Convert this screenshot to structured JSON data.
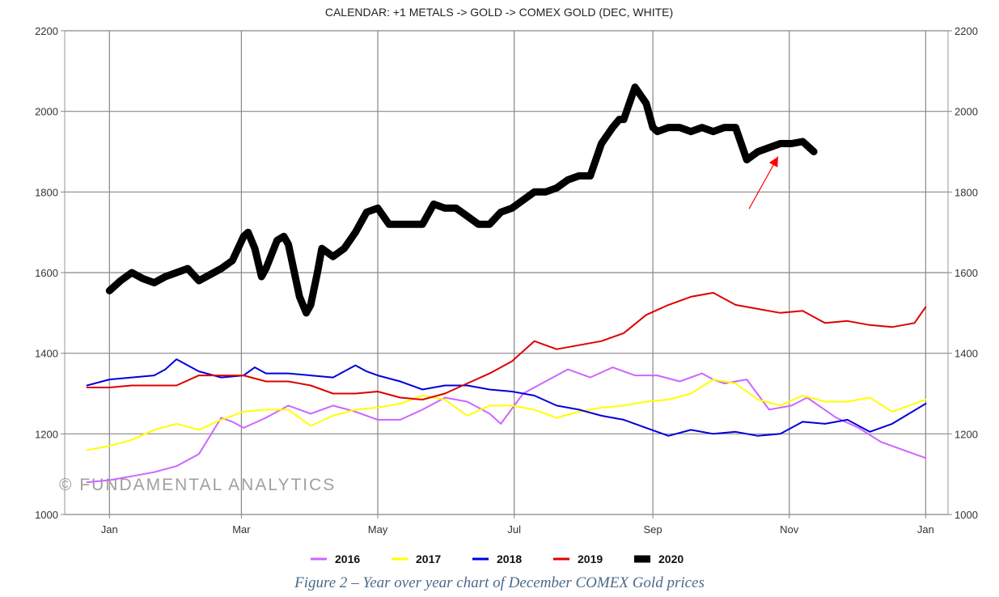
{
  "chart_data": {
    "type": "line",
    "title": "CALENDAR: +1 METALS -> GOLD -> COMEX GOLD (DEC, WHITE)",
    "xlabel": "",
    "ylabel": "",
    "ylim": [
      1000,
      2200
    ],
    "y_ticks": [
      "1000",
      "1200",
      "1400",
      "1600",
      "1800",
      "2000",
      "2200"
    ],
    "y_ticks_right": [
      "1000",
      "1200",
      "1400",
      "1600",
      "1800",
      "2000",
      "2200"
    ],
    "x_ticks": [
      "Jan",
      "Mar",
      "May",
      "Jul",
      "Sep",
      "Nov",
      "Jan"
    ],
    "x_units": "day of year (0 = Jan 1, 365 = next Jan 1)",
    "xlim": [
      -20,
      375
    ],
    "grid": true,
    "legend_position": "bottom",
    "watermark": "© FUNDAMENTAL ANALYTICS",
    "series": [
      {
        "name": "2016",
        "color": "#cc66ff",
        "width": 2,
        "x": [
          -10,
          0,
          10,
          20,
          30,
          40,
          50,
          55,
          60,
          70,
          80,
          90,
          100,
          110,
          120,
          130,
          140,
          150,
          160,
          170,
          175,
          185,
          195,
          205,
          215,
          225,
          235,
          245,
          255,
          265,
          270,
          275,
          285,
          295,
          305,
          312,
          325,
          335,
          345,
          355,
          365
        ],
        "y": [
          1080,
          1085,
          1095,
          1105,
          1120,
          1150,
          1240,
          1230,
          1215,
          1240,
          1270,
          1250,
          1270,
          1255,
          1235,
          1235,
          1260,
          1290,
          1280,
          1250,
          1225,
          1300,
          1330,
          1360,
          1340,
          1365,
          1345,
          1345,
          1330,
          1350,
          1335,
          1325,
          1335,
          1260,
          1270,
          1290,
          1240,
          1215,
          1180,
          1160,
          1140
        ]
      },
      {
        "name": "2017",
        "color": "#ffff00",
        "width": 2,
        "x": [
          -10,
          0,
          10,
          20,
          30,
          40,
          50,
          60,
          70,
          80,
          90,
          100,
          110,
          120,
          130,
          140,
          150,
          160,
          170,
          180,
          190,
          200,
          210,
          220,
          230,
          240,
          250,
          260,
          270,
          280,
          290,
          300,
          310,
          320,
          330,
          340,
          350,
          365
        ],
        "y": [
          1160,
          1170,
          1185,
          1210,
          1225,
          1210,
          1235,
          1255,
          1260,
          1260,
          1220,
          1245,
          1260,
          1265,
          1275,
          1295,
          1285,
          1245,
          1270,
          1270,
          1260,
          1240,
          1255,
          1265,
          1270,
          1280,
          1285,
          1300,
          1335,
          1325,
          1285,
          1270,
          1295,
          1280,
          1280,
          1290,
          1255,
          1285
        ]
      },
      {
        "name": "2018",
        "color": "#0000dd",
        "width": 2,
        "x": [
          -10,
          0,
          10,
          20,
          25,
          30,
          40,
          50,
          60,
          65,
          70,
          80,
          90,
          100,
          110,
          115,
          120,
          130,
          140,
          150,
          160,
          170,
          180,
          190,
          200,
          210,
          220,
          230,
          240,
          250,
          260,
          270,
          280,
          290,
          300,
          310,
          320,
          330,
          340,
          350,
          365
        ],
        "y": [
          1320,
          1335,
          1340,
          1345,
          1360,
          1385,
          1355,
          1340,
          1345,
          1365,
          1350,
          1350,
          1345,
          1340,
          1370,
          1355,
          1345,
          1330,
          1310,
          1320,
          1320,
          1310,
          1305,
          1295,
          1270,
          1260,
          1245,
          1235,
          1215,
          1195,
          1210,
          1200,
          1205,
          1195,
          1200,
          1230,
          1225,
          1235,
          1205,
          1225,
          1275
        ]
      },
      {
        "name": "2019",
        "color": "#dd0000",
        "width": 2,
        "x": [
          -10,
          0,
          10,
          20,
          30,
          40,
          50,
          60,
          70,
          80,
          90,
          100,
          110,
          120,
          130,
          140,
          150,
          160,
          170,
          180,
          190,
          200,
          210,
          220,
          230,
          240,
          250,
          260,
          270,
          280,
          290,
          300,
          310,
          320,
          330,
          340,
          350,
          360,
          365
        ],
        "y": [
          1315,
          1315,
          1320,
          1320,
          1320,
          1345,
          1345,
          1345,
          1330,
          1330,
          1320,
          1300,
          1300,
          1305,
          1290,
          1285,
          1300,
          1325,
          1350,
          1380,
          1430,
          1410,
          1420,
          1430,
          1450,
          1495,
          1520,
          1540,
          1550,
          1520,
          1510,
          1500,
          1505,
          1475,
          1480,
          1470,
          1465,
          1475,
          1515
        ]
      },
      {
        "name": "2020",
        "color": "#000000",
        "width": 9,
        "x": [
          0,
          5,
          10,
          15,
          20,
          25,
          30,
          35,
          40,
          45,
          50,
          55,
          60,
          62,
          65,
          68,
          70,
          75,
          78,
          80,
          85,
          88,
          90,
          93,
          95,
          100,
          105,
          110,
          115,
          120,
          125,
          130,
          135,
          140,
          145,
          150,
          155,
          160,
          165,
          170,
          175,
          180,
          185,
          190,
          195,
          200,
          205,
          210,
          215,
          220,
          225,
          228,
          230,
          235,
          240,
          243,
          245,
          250,
          255,
          260,
          265,
          270,
          275,
          280,
          285,
          290,
          295,
          300,
          305,
          310,
          315
        ],
        "y": [
          1555,
          1580,
          1600,
          1585,
          1575,
          1590,
          1600,
          1610,
          1580,
          1595,
          1610,
          1630,
          1690,
          1700,
          1660,
          1590,
          1610,
          1680,
          1690,
          1670,
          1540,
          1500,
          1520,
          1600,
          1660,
          1640,
          1660,
          1700,
          1750,
          1760,
          1720,
          1720,
          1720,
          1720,
          1770,
          1760,
          1760,
          1740,
          1720,
          1720,
          1750,
          1760,
          1780,
          1800,
          1800,
          1810,
          1830,
          1840,
          1840,
          1920,
          1960,
          1980,
          1980,
          2060,
          2020,
          1960,
          1950,
          1960,
          1960,
          1950,
          1960,
          1950,
          1960,
          1960,
          1880,
          1900,
          1910,
          1920,
          1920,
          1925,
          1900
        ]
      }
    ],
    "annotation": {
      "type": "red-arrow",
      "from": [
        286,
        1758
      ],
      "to": [
        299,
        1888
      ]
    }
  },
  "caption": "Figure 2 – Year over year chart of December COMEX Gold prices",
  "colors": {
    "grid": "#888888",
    "plot_border": "#999999",
    "arrow": "#ff0000",
    "caption": "#4a6a8a",
    "watermark": "#999999"
  }
}
